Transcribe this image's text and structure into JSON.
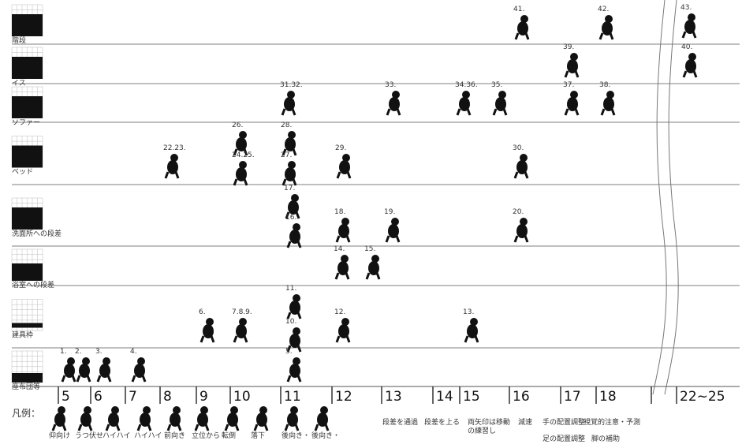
{
  "rows": [
    "階段",
    "イス",
    "ソファー",
    "ベッド",
    "洗面所への段差",
    "浴室への段差",
    "建具枠",
    "座布団等"
  ],
  "axis": [
    "5",
    "6",
    "7",
    "8",
    "9",
    "10",
    "11",
    "12",
    "13",
    "14",
    "15",
    "16",
    "17",
    "18",
    "22~25"
  ],
  "entries": [
    "41.",
    "42.",
    "43.",
    "39.",
    "40.",
    "31.32.",
    "33.",
    "34.36.",
    "35.",
    "37.",
    "38.",
    "26.",
    "28.",
    "22.23.",
    "24.25.",
    "27.",
    "29.",
    "30.",
    "17.",
    "16.",
    "18.",
    "19.",
    "20.",
    "14.",
    "15.",
    "6.",
    "7.8.9.",
    "11.",
    "10.",
    "12.",
    "13.",
    "1.",
    "2.",
    "3.",
    "4.",
    "5."
  ],
  "legend": {
    "title": "凡例：",
    "items": [
      "仰向け",
      "うつ伏せ",
      "ハイハイ",
      "ハイハイ",
      "前向き",
      "立位から",
      "転倒",
      "落下",
      "後向き・",
      "後向き・"
    ],
    "symbols": [
      "段差を通過",
      "段差を上る",
      "両矢印は移動",
      "の練習し",
      "減速",
      "手の配置調整",
      "視覚的注意・予測",
      "足の配置調整",
      "脚の補助"
    ]
  }
}
